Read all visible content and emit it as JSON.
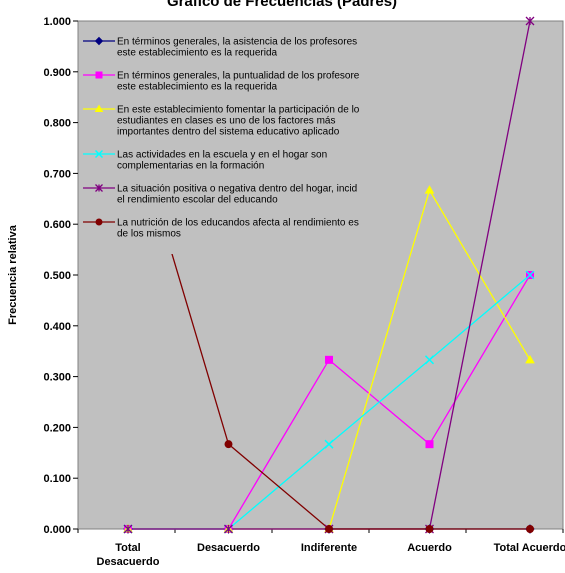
{
  "chart_data": {
    "type": "line",
    "title": "Gráfico de Frecuencias (Padres)",
    "ylabel": "Frecuencia relativa",
    "xlabel": "",
    "categories": [
      "Total Desacuerdo",
      "Desacuerdo",
      "Indiferente",
      "Acuerdo",
      "Total Acuerdo"
    ],
    "category_lines": [
      [
        "Total",
        "Desacuerdo"
      ],
      [
        "Desacuerdo"
      ],
      [
        "Indiferente"
      ],
      [
        "Acuerdo"
      ],
      [
        "Total Acuerdo"
      ]
    ],
    "ylim": [
      0,
      1
    ],
    "yticks": [
      "0.000",
      "0.100",
      "0.200",
      "0.300",
      "0.400",
      "0.500",
      "0.600",
      "0.700",
      "0.800",
      "0.900",
      "1.000"
    ],
    "grid": false,
    "legend_position": "top-left, inside plot",
    "plot_background": "#c0c0c0",
    "series": [
      {
        "name": "En términos generales, la asistencia de los profesores este establecimiento es la requerida",
        "legend_lines": [
          "En términos generales, la asistencia de los profesores",
          "este establecimiento es la requerida"
        ],
        "color": "#000080",
        "marker": "diamond",
        "values": [
          0,
          0,
          0,
          0,
          0
        ]
      },
      {
        "name": "En términos generales, la puntualidad de los profesore este establecimiento es la requerida",
        "legend_lines": [
          "En términos generales, la puntualidad de los profesore",
          "este establecimiento es la requerida"
        ],
        "color": "#ff00ff",
        "marker": "square",
        "values": [
          0,
          0,
          0.333,
          0.167,
          0.5
        ]
      },
      {
        "name": "En este establecimiento fomentar la participación de lo estudiantes en clases es uno de los factores más importantes dentro del sistema educativo aplicado",
        "legend_lines": [
          "En este establecimiento fomentar la participación de lo",
          "estudiantes en clases es uno de los factores más",
          "importantes dentro del sistema educativo aplicado"
        ],
        "color": "#ffff00",
        "marker": "triangle",
        "values": [
          0,
          0,
          0,
          0.667,
          0.333
        ]
      },
      {
        "name": "Las actividades en la escuela y en el hogar son complementarias en la formación",
        "legend_lines": [
          "Las actividades en la escuela y en el  hogar son",
          "complementarias en la formación"
        ],
        "color": "#00ffff",
        "marker": "x",
        "values": [
          0,
          0,
          0.167,
          0.333,
          0.5
        ]
      },
      {
        "name": "La situación positiva o negativa dentro del hogar, incid el rendimiento escolar del educando",
        "legend_lines": [
          "La situación positiva o negativa dentro del hogar,  incid",
          "el rendimiento escolar del educando"
        ],
        "color": "#800080",
        "marker": "star",
        "values": [
          0,
          0,
          0,
          0,
          1
        ]
      },
      {
        "name": "La nutrición de los educandos afecta al rendimiento es de los mismos",
        "legend_lines": [
          "La nutrición de los educandos afecta al rendimiento es",
          "de los mismos"
        ],
        "color": "#800000",
        "marker": "circle",
        "values": [
          0.833,
          0.167,
          0,
          0,
          0
        ]
      }
    ]
  }
}
